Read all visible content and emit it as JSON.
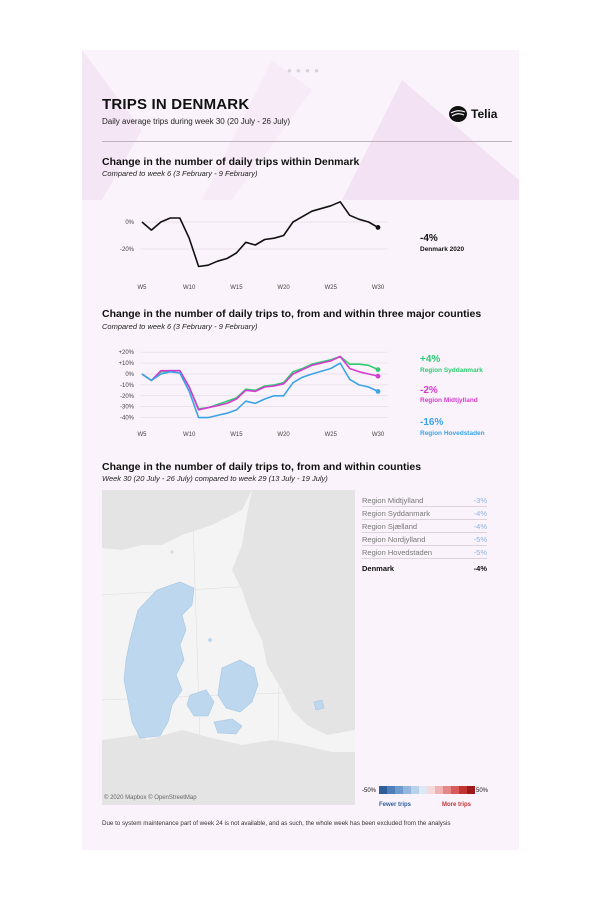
{
  "header": {
    "title": "TRIPS IN DENMARK",
    "subtitle": "Daily average trips during week 30 (20 July - 26 July)",
    "logo_text": "Telia"
  },
  "colors": {
    "background": "#fbf3fb",
    "denmark": "#111111",
    "syddanmark": "#2ecc71",
    "midtjylland": "#d63bd1",
    "hovedstaden": "#3aa4e6",
    "map_land": "#e8e8e8",
    "map_highlight": "#bcd7ee",
    "positive_value": "#8fb3dc"
  },
  "section1": {
    "title": "Change in the number of daily trips within Denmark",
    "subtitle": "Compared to week 6 (3 February - 9 February)",
    "end_value": "-4%",
    "end_label": "Denmark 2020"
  },
  "section2": {
    "title": "Change in the number of daily trips to, from and within three major counties",
    "subtitle": "Compared to week 6 (3 February - 9 February)",
    "labels": [
      {
        "value": "+4%",
        "name": "Region Syddanmark"
      },
      {
        "value": "-2%",
        "name": "Region Midtjylland"
      },
      {
        "value": "-16%",
        "name": "Region Hovedstaden"
      }
    ]
  },
  "section3": {
    "title": "Change in the number of daily trips to, from and within counties",
    "subtitle": "Week 30 (20 July - 26 July) compared to week 29 (13 July - 19 July)",
    "attribution": "© 2020 Mapbox © OpenStreetMap",
    "regions": [
      {
        "name": "Region Midtjylland",
        "value": "-3%"
      },
      {
        "name": "Region Syddanmark",
        "value": "-4%"
      },
      {
        "name": "Region Sjælland",
        "value": "-4%"
      },
      {
        "name": "Region Nordjylland",
        "value": "-5%"
      },
      {
        "name": "Region Hovedstaden",
        "value": "-5%"
      }
    ],
    "total": {
      "name": "Denmark",
      "value": "-4%"
    },
    "scale_min": "-50%",
    "scale_max": "50%",
    "fewer_label": "Fewer trips",
    "more_label": "More trips"
  },
  "footnote": "Due to system maintenance part of week 24 is not available, and as such, the whole week has been excluded from the analysis",
  "chart_data": [
    {
      "type": "line",
      "title": "Change in the number of daily trips within Denmark",
      "x": [
        5,
        6,
        7,
        8,
        9,
        10,
        11,
        12,
        13,
        14,
        15,
        16,
        17,
        18,
        19,
        20,
        21,
        22,
        23,
        25,
        26,
        27,
        28,
        29,
        30
      ],
      "x_ticks": [
        "W5",
        "W10",
        "W15",
        "W20",
        "W25",
        "W30"
      ],
      "y_ticks": [
        "0%",
        "-20%"
      ],
      "ylim": [
        -40,
        20
      ],
      "series": [
        {
          "name": "Denmark 2020",
          "color": "#111111",
          "values": [
            0,
            -6,
            0,
            3,
            3,
            -12,
            -33,
            -32,
            -29,
            -27,
            -23,
            -15,
            -17,
            -13,
            -12,
            -10,
            0,
            4,
            8,
            12,
            15,
            5,
            2,
            0,
            -4
          ]
        }
      ]
    },
    {
      "type": "line",
      "title": "Change in the number of daily trips to, from and within three major counties",
      "x": [
        5,
        6,
        7,
        8,
        9,
        10,
        11,
        12,
        13,
        14,
        15,
        16,
        17,
        18,
        19,
        20,
        21,
        22,
        23,
        25,
        26,
        27,
        28,
        29,
        30
      ],
      "x_ticks": [
        "W5",
        "W10",
        "W15",
        "W20",
        "W25",
        "W30"
      ],
      "y_ticks": [
        "+20%",
        "+10%",
        "0%",
        "-10%",
        "-20%",
        "-30%",
        "-40%"
      ],
      "ylim": [
        -45,
        22
      ],
      "series": [
        {
          "name": "Region Syddanmark",
          "color": "#2ecc71",
          "values": [
            0,
            -6,
            2,
            3,
            3,
            -12,
            -32,
            -31,
            -28,
            -25,
            -22,
            -14,
            -15,
            -11,
            -10,
            -8,
            2,
            5,
            9,
            13,
            16,
            9,
            9,
            8,
            4
          ]
        },
        {
          "name": "Region Midtjylland",
          "color": "#d63bd1",
          "values": [
            0,
            -6,
            3,
            3,
            3,
            -12,
            -33,
            -31,
            -29,
            -27,
            -23,
            -15,
            -16,
            -12,
            -11,
            -9,
            0,
            4,
            8,
            12,
            16,
            5,
            2,
            0,
            -2
          ]
        },
        {
          "name": "Region Hovedstaden",
          "color": "#3aa4e6",
          "values": [
            0,
            -6,
            0,
            2,
            1,
            -16,
            -40,
            -40,
            -38,
            -36,
            -33,
            -25,
            -27,
            -23,
            -20,
            -20,
            -8,
            -3,
            0,
            5,
            10,
            -5,
            -10,
            -12,
            -16
          ]
        }
      ]
    }
  ]
}
